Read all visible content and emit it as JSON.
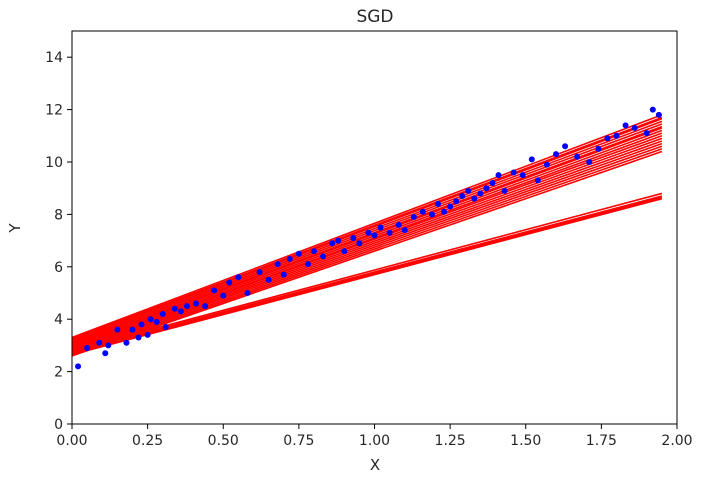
{
  "chart_data": {
    "type": "scatter",
    "title": "SGD",
    "xlabel": "X",
    "ylabel": "Y",
    "xlim": [
      0,
      2
    ],
    "ylim": [
      0,
      15
    ],
    "xticks": [
      "0.00",
      "0.25",
      "0.50",
      "0.75",
      "1.00",
      "1.25",
      "1.50",
      "1.75",
      "2.00"
    ],
    "yticks": [
      "0",
      "2",
      "4",
      "6",
      "8",
      "10",
      "12",
      "14"
    ],
    "grid": false,
    "colors": {
      "points": "#0000ff",
      "lines": "#ff0000"
    },
    "series": [
      {
        "type": "scatter",
        "x": [
          0.02,
          0.05,
          0.09,
          0.11,
          0.12,
          0.15,
          0.18,
          0.2,
          0.22,
          0.23,
          0.25,
          0.26,
          0.28,
          0.3,
          0.31,
          0.34,
          0.36,
          0.38,
          0.41,
          0.44,
          0.47,
          0.5,
          0.52,
          0.55,
          0.58,
          0.62,
          0.65,
          0.68,
          0.7,
          0.72,
          0.75,
          0.78,
          0.8,
          0.83,
          0.86,
          0.88,
          0.9,
          0.93,
          0.95,
          0.98,
          1.0,
          1.02,
          1.05,
          1.08,
          1.1,
          1.13,
          1.16,
          1.19,
          1.21,
          1.23,
          1.25,
          1.27,
          1.29,
          1.31,
          1.33,
          1.35,
          1.37,
          1.39,
          1.41,
          1.43,
          1.46,
          1.49,
          1.52,
          1.54,
          1.57,
          1.6,
          1.63,
          1.67,
          1.71,
          1.74,
          1.77,
          1.8,
          1.83,
          1.86,
          1.9,
          1.92,
          1.94
        ],
        "y": [
          2.2,
          2.9,
          3.1,
          2.7,
          3.0,
          3.6,
          3.1,
          3.6,
          3.3,
          3.8,
          3.4,
          4.0,
          3.9,
          4.2,
          3.7,
          4.4,
          4.3,
          4.5,
          4.6,
          4.5,
          5.1,
          4.9,
          5.4,
          5.6,
          5.0,
          5.8,
          5.5,
          6.1,
          5.7,
          6.3,
          6.5,
          6.1,
          6.6,
          6.4,
          6.9,
          7.0,
          6.6,
          7.1,
          6.9,
          7.3,
          7.2,
          7.5,
          7.3,
          7.6,
          7.4,
          7.9,
          8.1,
          8.0,
          8.4,
          8.1,
          8.3,
          8.5,
          8.7,
          8.9,
          8.6,
          8.8,
          9.0,
          9.2,
          9.5,
          8.9,
          9.6,
          9.5,
          10.1,
          9.3,
          9.9,
          10.3,
          10.6,
          10.2,
          10.0,
          10.5,
          10.9,
          11.0,
          11.4,
          11.3,
          11.1,
          12.0,
          11.8
        ]
      },
      {
        "type": "lines",
        "segments": [
          [
            3.3,
            11.8
          ],
          [
            3.25,
            11.7
          ],
          [
            3.2,
            11.65
          ],
          [
            3.15,
            11.55
          ],
          [
            3.1,
            11.45
          ],
          [
            3.05,
            11.35
          ],
          [
            3.0,
            11.3
          ],
          [
            2.95,
            11.2
          ],
          [
            2.9,
            11.1
          ],
          [
            2.9,
            11.0
          ],
          [
            2.85,
            10.9
          ],
          [
            2.8,
            10.8
          ],
          [
            2.75,
            10.7
          ],
          [
            2.7,
            10.6
          ],
          [
            2.65,
            10.5
          ],
          [
            2.6,
            10.4
          ],
          [
            2.8,
            8.8
          ],
          [
            2.75,
            8.7
          ],
          [
            2.7,
            8.65
          ],
          [
            2.65,
            8.6
          ]
        ]
      }
    ]
  }
}
